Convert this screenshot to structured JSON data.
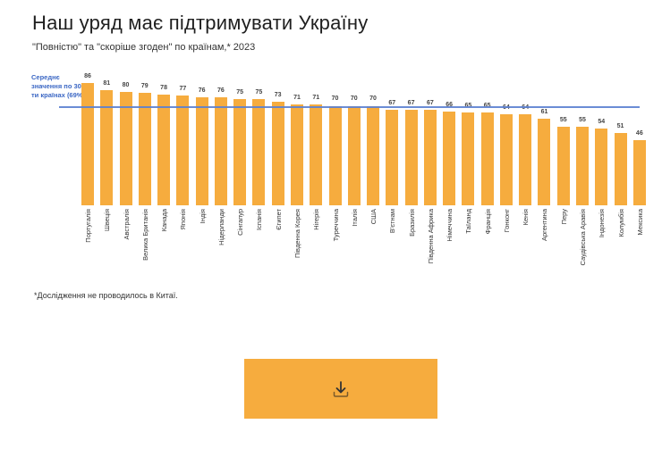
{
  "header": {
    "title": "Наш уряд має підтримувати Україну",
    "subtitle": "\"Повністю\" та \"скоріше згоден\" по країнам,* 2023"
  },
  "average": {
    "label": "Середнє значення по 30-ти країнах (69%)",
    "value": 69,
    "color": "#3b67c4"
  },
  "footnote": "*Дослідження не проводилось в Китаї.",
  "download_button": {
    "icon": "download-icon",
    "color": "#f6ac3e"
  },
  "chart_data": {
    "type": "bar",
    "title": "Наш уряд має підтримувати Україну",
    "subtitle": "\"Повністю\" та \"скоріше згоден\" по країнам,* 2023",
    "xlabel": "",
    "ylabel": "",
    "bar_color": "#f6ac3e",
    "grid": false,
    "legend": null,
    "reference_line": {
      "value": 69,
      "label": "Середнє значення по 30-ти країнах (69%)"
    },
    "categories": [
      "Португалія",
      "Швеція",
      "Австралія",
      "Велика Британія",
      "Канада",
      "Японія",
      "Індія",
      "Нідерланди",
      "Сінгапур",
      "Іспанія",
      "Єгипет",
      "Південна Корея",
      "Нігерія",
      "Туреччина",
      "Італія",
      "США",
      "В'єтнам",
      "Бразилія",
      "Південна Африка",
      "Німеччина",
      "Таїланд",
      "Франція",
      "Гонконг",
      "Кенія",
      "Аргентина",
      "Перу",
      "Саудівська Аравія",
      "Індонезія",
      "Колумбія",
      "Мексика"
    ],
    "values": [
      86,
      81,
      80,
      79,
      78,
      77,
      76,
      76,
      75,
      75,
      73,
      71,
      71,
      70,
      70,
      70,
      67,
      67,
      67,
      66,
      65,
      65,
      64,
      64,
      61,
      55,
      55,
      54,
      51,
      46
    ],
    "ylim": [
      0,
      100
    ]
  }
}
